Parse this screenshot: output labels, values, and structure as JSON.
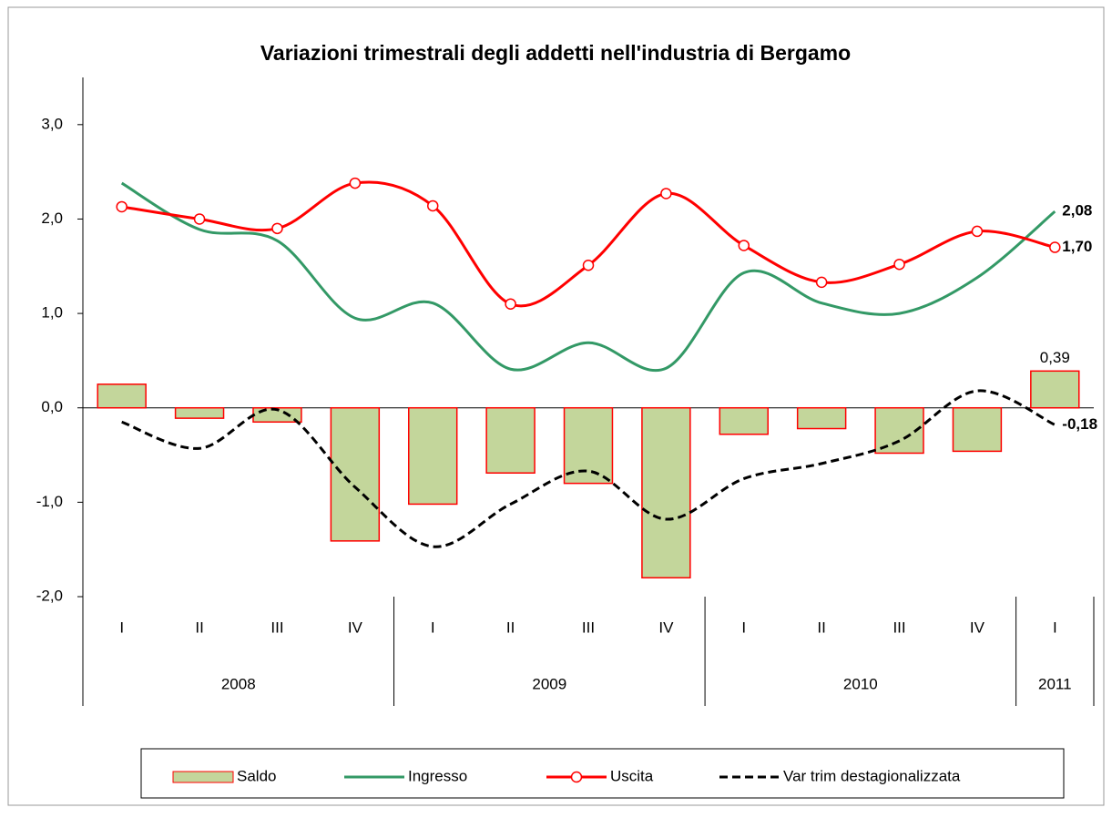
{
  "chart_data": {
    "type": "combo",
    "title": "Variazioni trimestrali degli addetti nell'industria di Bergamo",
    "categories": [
      "I",
      "II",
      "III",
      "IV",
      "I",
      "II",
      "III",
      "IV",
      "I",
      "II",
      "III",
      "IV",
      "I"
    ],
    "years": [
      "2008",
      "2009",
      "2010",
      "2011"
    ],
    "year_spans": [
      4,
      4,
      4,
      1
    ],
    "ylim": [
      -2,
      3.5
    ],
    "yticks": [
      {
        "value": -2,
        "label": "-2,0"
      },
      {
        "value": -1,
        "label": "-1,0"
      },
      {
        "value": 0,
        "label": "0,0"
      },
      {
        "value": 1,
        "label": "1,0"
      },
      {
        "value": 2,
        "label": "2,0"
      },
      {
        "value": 3,
        "label": "3,0"
      }
    ],
    "grid": false,
    "legend": "bottom",
    "series": [
      {
        "name": "Saldo",
        "type": "bar",
        "color": "#c3d69b",
        "edge_color": "#ff0000",
        "values": [
          0.25,
          -0.11,
          -0.15,
          -1.41,
          -1.02,
          -0.69,
          -0.8,
          -1.8,
          -0.28,
          -0.22,
          -0.48,
          -0.46,
          0.39
        ],
        "value_labels": [
          null,
          null,
          null,
          null,
          null,
          null,
          null,
          null,
          null,
          null,
          null,
          null,
          "0,39"
        ]
      },
      {
        "name": "Ingresso",
        "type": "line",
        "color": "#339966",
        "values": [
          2.38,
          1.89,
          1.77,
          0.95,
          1.11,
          0.41,
          0.69,
          0.42,
          1.43,
          1.11,
          1.0,
          1.38,
          2.08
        ],
        "value_labels": [
          null,
          null,
          null,
          null,
          null,
          null,
          null,
          null,
          null,
          null,
          null,
          null,
          "2,08"
        ]
      },
      {
        "name": "Uscita",
        "type": "line",
        "color": "#ff0000",
        "markers": true,
        "values": [
          2.13,
          2.0,
          1.9,
          2.38,
          2.14,
          1.1,
          1.51,
          2.27,
          1.72,
          1.33,
          1.52,
          1.87,
          1.7
        ],
        "value_labels": [
          null,
          null,
          null,
          null,
          null,
          null,
          null,
          null,
          null,
          null,
          null,
          null,
          "1,70"
        ]
      },
      {
        "name": "Var trim destagionalizzata",
        "type": "line",
        "color": "#000000",
        "dashed": true,
        "values": [
          -0.15,
          -0.43,
          -0.02,
          -0.84,
          -1.47,
          -1.02,
          -0.67,
          -1.18,
          -0.75,
          -0.59,
          -0.35,
          0.18,
          -0.18
        ],
        "value_labels": [
          null,
          null,
          null,
          null,
          null,
          null,
          null,
          null,
          null,
          null,
          null,
          null,
          "-0,18"
        ]
      }
    ]
  }
}
